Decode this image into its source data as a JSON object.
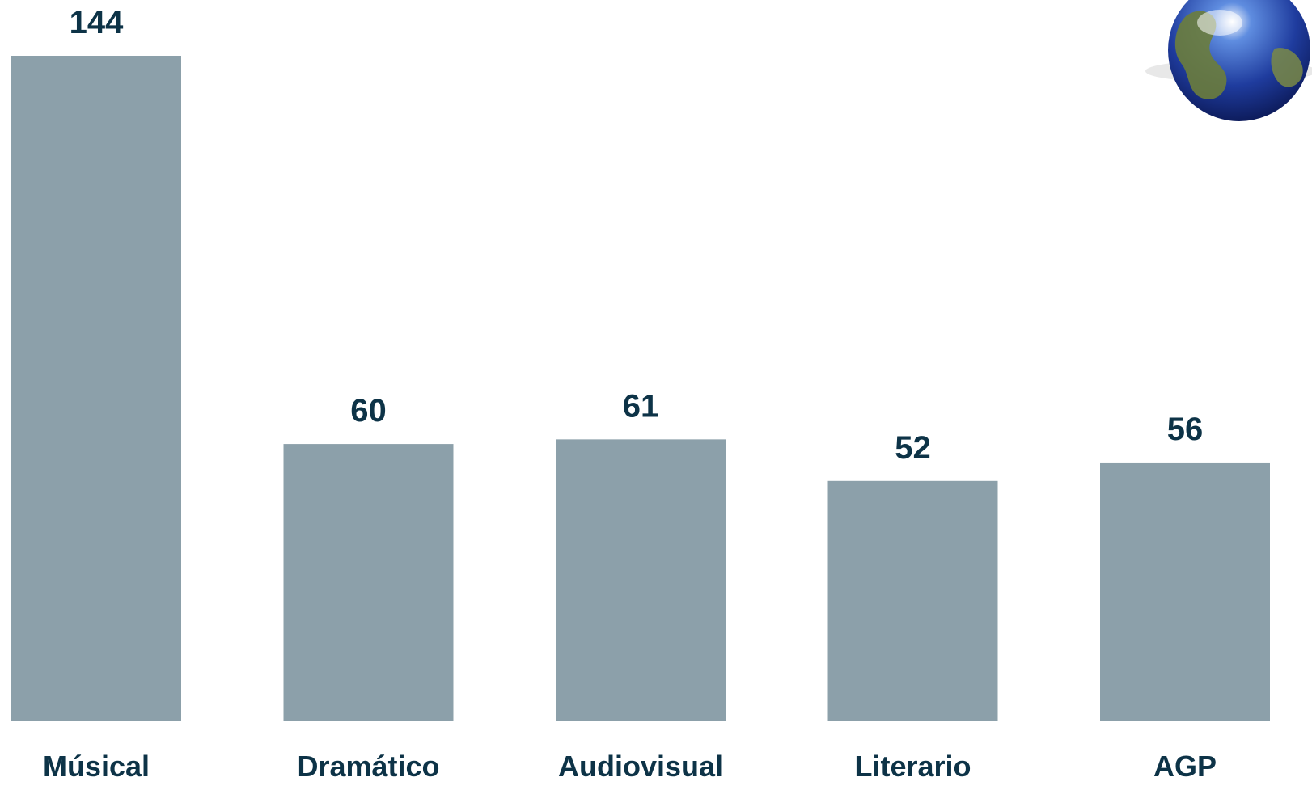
{
  "chart_data": {
    "type": "bar",
    "categories": [
      "Músical",
      "Dramático",
      "Audiovisual",
      "Literario",
      "AGP"
    ],
    "values": [
      144,
      60,
      61,
      52,
      56
    ],
    "title": "",
    "xlabel": "",
    "ylabel": "",
    "ylim": [
      0,
      144
    ],
    "grid": false,
    "legend": "none",
    "data_labels": true
  },
  "colors": {
    "bar": "#8ca0aa",
    "text": "#0d3347",
    "background": "#ffffff",
    "globe_ocean": "#1f3c9e",
    "globe_land": "#6b7d3c"
  },
  "icons": {
    "decoration": "globe-icon"
  }
}
